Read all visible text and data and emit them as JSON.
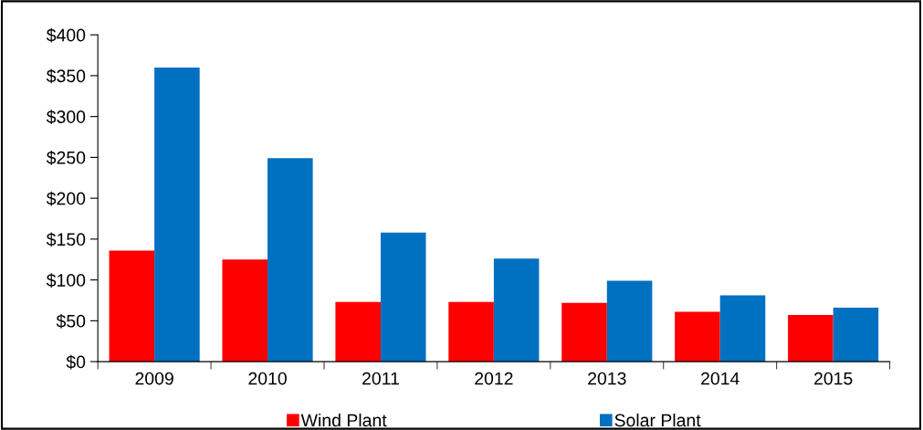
{
  "chart_data": {
    "type": "bar",
    "categories": [
      "2009",
      "2010",
      "2011",
      "2012",
      "2013",
      "2014",
      "2015"
    ],
    "series": [
      {
        "name": "Wind Plant",
        "color": "#ff0000",
        "values": [
          136,
          125,
          73,
          73,
          72,
          61,
          57
        ]
      },
      {
        "name": "Solar Plant",
        "color": "#0070c0",
        "values": [
          360,
          249,
          158,
          126,
          99,
          81,
          66
        ]
      }
    ],
    "ylim": [
      0,
      400
    ],
    "yticks": [
      {
        "value": 0,
        "label": "$0"
      },
      {
        "value": 50,
        "label": "$50"
      },
      {
        "value": 100,
        "label": "$100"
      },
      {
        "value": 150,
        "label": "$150"
      },
      {
        "value": 200,
        "label": "$200"
      },
      {
        "value": 250,
        "label": "$250"
      },
      {
        "value": 300,
        "label": "$300"
      },
      {
        "value": 350,
        "label": "$350"
      },
      {
        "value": 400,
        "label": "$400"
      }
    ],
    "grid": false,
    "legend": "bottom"
  }
}
